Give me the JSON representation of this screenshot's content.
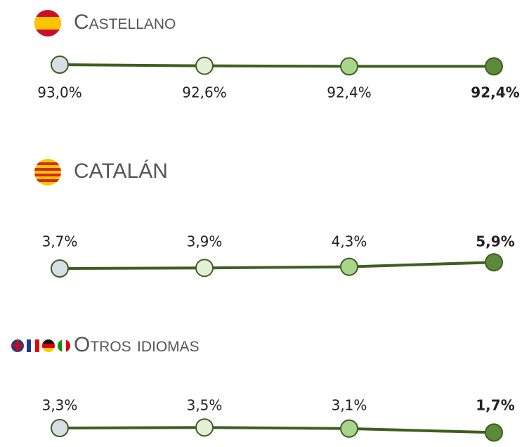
{
  "chart_data": [
    {
      "type": "line",
      "title": "Castellano",
      "categories": [
        null,
        null,
        null,
        null
      ],
      "values": [
        93.0,
        92.6,
        92.4,
        92.4
      ],
      "value_labels": [
        "93,0%",
        "92,6%",
        "92,4%",
        "92,4%"
      ],
      "color": "#3f5f1f",
      "colors": [
        "#d8dde8",
        "#e2f0d8",
        "#a8d48c",
        "#5a8a3a"
      ]
    },
    {
      "type": "line",
      "title": "CATALÁN",
      "categories": [
        null,
        null,
        null,
        null
      ],
      "values": [
        3.7,
        3.9,
        4.3,
        5.9
      ],
      "value_labels": [
        "3,7%",
        "3,9%",
        "4,3%",
        "5,9%"
      ],
      "color": "#3f5f1f",
      "colors": [
        "#d8dde8",
        "#e2f0d8",
        "#a8d48c",
        "#5a8a3a"
      ]
    },
    {
      "type": "line",
      "title": "Otros idiomas",
      "categories": [
        null,
        null,
        null,
        null
      ],
      "values": [
        3.3,
        3.5,
        3.1,
        1.7
      ],
      "value_labels": [
        "3,3%",
        "3,5%",
        "3,1%",
        "1,7%"
      ],
      "color": "#3f5f1f",
      "colors": [
        "#d8dde8",
        "#e2f0d8",
        "#a8d48c",
        "#5a8a3a"
      ]
    }
  ]
}
